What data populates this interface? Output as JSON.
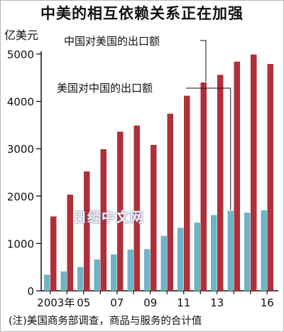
{
  "title": "中美的相互依赖关系正在加强",
  "unit": "亿美元",
  "note": "(注)美国商务部调查，商品与服务的合计值",
  "watermark": "日经中文网",
  "colors": {
    "china_exports": "#b0303a",
    "us_exports": "#6fb3c6",
    "axis": "#111111"
  },
  "chart_data": {
    "type": "bar",
    "title": "中美的相互依赖关系正在加强",
    "ylabel": "亿美元",
    "xlabel": "",
    "ylim": [
      0,
      5000
    ],
    "yticks": [
      0,
      1000,
      2000,
      3000,
      4000,
      5000
    ],
    "categories": [
      "2003",
      "2004",
      "2005",
      "2006",
      "2007",
      "2008",
      "2009",
      "2010",
      "2011",
      "2012",
      "2013",
      "2014",
      "2015",
      "2016"
    ],
    "x_tick_labels": [
      "2003年",
      "",
      "05",
      "",
      "07",
      "",
      "09",
      "",
      "11",
      "",
      "13",
      "",
      "",
      "16"
    ],
    "series": [
      {
        "name": "美国对中国的出口额",
        "color": "#6fb3c6",
        "values": [
          340,
          410,
          500,
          660,
          770,
          870,
          880,
          1160,
          1330,
          1440,
          1600,
          1690,
          1650,
          1700
        ]
      },
      {
        "name": "中国对美国的出口额",
        "color": "#b0303a",
        "values": [
          1570,
          2030,
          2520,
          2990,
          3360,
          3490,
          3080,
          3740,
          4120,
          4400,
          4560,
          4840,
          4990,
          4790
        ]
      }
    ],
    "grid": false,
    "legend": "callout labels at top"
  }
}
